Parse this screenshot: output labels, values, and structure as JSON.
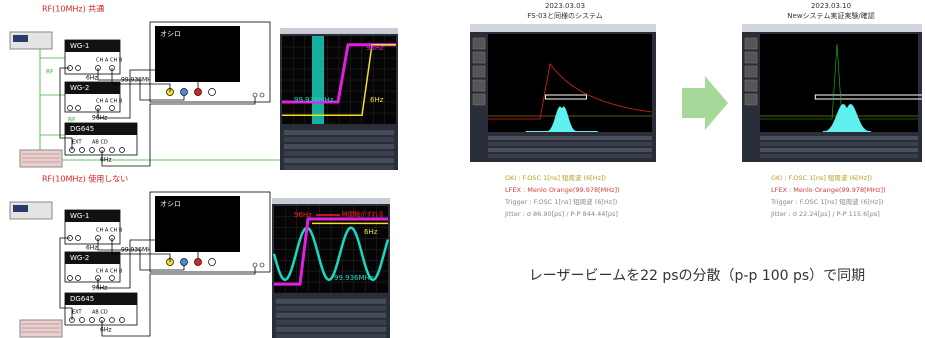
{
  "setups": [
    {
      "title": "RF(10MHz) 共通",
      "wg1": "WG-1",
      "wg1_ch_a": "CH A",
      "wg1_ch_b": "CH B",
      "wg1_freq": "6Hz",
      "wg1_out": "99.936MHz",
      "rf_labels": [
        "RF",
        "RF"
      ],
      "wg2": "WG-2",
      "wg2_ch_a": "CH A",
      "wg2_ch_b": "CH B",
      "wg2_freq": "96Hz",
      "dg": "DG645",
      "dg_ext": "EXT",
      "dg_ports": "AB CD",
      "dg_freq": "6Hz",
      "scope": "オシロ"
    },
    {
      "title": "RF(10MHz) 使用しない",
      "wg1": "WG-1",
      "wg1_ch_a": "CH A",
      "wg1_ch_b": "CH B",
      "wg1_freq": "6Hz",
      "wg1_out": "99.936MHz",
      "rf_labels": [],
      "wg2": "WG-2",
      "wg2_ch_a": "CH A",
      "wg2_ch_b": "CH B",
      "wg2_freq": "96Hz",
      "dg": "DG645",
      "dg_ext": "EXT",
      "dg_ports": "AB CD",
      "dg_freq": "6Hz",
      "scope": "オシロ"
    }
  ],
  "captures": [
    {
      "labels": [
        "96Hz",
        "99.936MHz",
        "6Hz"
      ]
    },
    {
      "labels": [
        "96Hz",
        "時間軸がずれる",
        "6Hz",
        "99.936MHz"
      ]
    }
  ],
  "results": [
    {
      "date": "2023.03.03",
      "title": "FS-03と同様のシステム",
      "lines": [
        "GKI : F.OSC 1[ns] 短周波 (6[Hz])",
        "LFEX : Menlo Orange(99.978[MHz])",
        "Trigger : F.OSC 1[ns] 短周波 (6[Hz])",
        "Jitter : σ 86.90[ps] / P-P 844.44[ps]"
      ]
    },
    {
      "date": "2023.03.10",
      "title": "Newシステム実証実験/確認",
      "lines": [
        "GKI : F.OSC 1[ns] 短周波 (6[Hz])",
        "LFEX : Menlo Orange(99.978[MHz])",
        "Trigger : F.OSC 1[ns] 短周波 (6[Hz])",
        "Jitter : σ 22.24[ps] / P-P 115.6[ps]"
      ]
    }
  ],
  "summary": "レーザービームを22 psの分散（p-p 100 ps）で同期"
}
